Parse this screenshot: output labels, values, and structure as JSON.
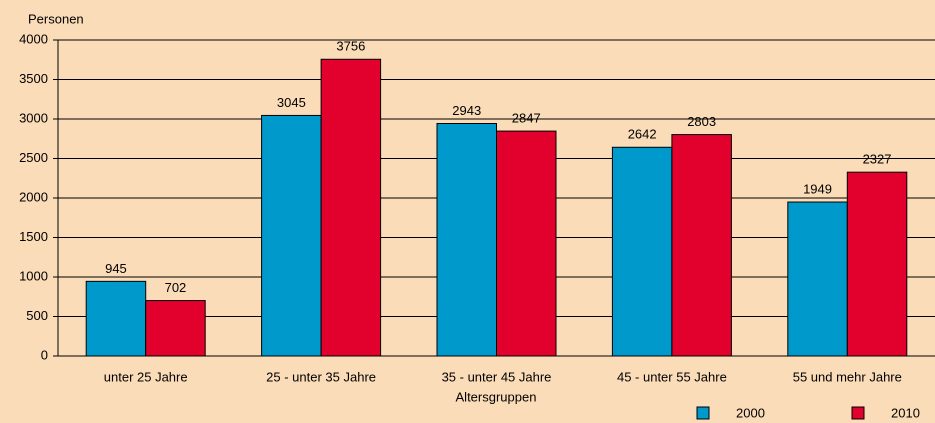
{
  "chart_data": {
    "type": "bar",
    "y_axis_label": "Personen",
    "x_axis_label": "Altersgruppen",
    "categories": [
      "unter 25 Jahre",
      "25 - unter 35 Jahre",
      "35 - unter 45 Jahre",
      "45 - unter 55 Jahre",
      "55 und mehr Jahre"
    ],
    "series": [
      {
        "name": "2000",
        "color": "#0099cc",
        "values": [
          945,
          3045,
          2943,
          2642,
          1949
        ]
      },
      {
        "name": "2010",
        "color": "#e2002c",
        "values": [
          702,
          3756,
          2847,
          2803,
          2327
        ]
      }
    ],
    "ylim": [
      0,
      4000
    ],
    "yticks": [
      0,
      500,
      1000,
      1500,
      2000,
      2500,
      3000,
      3500,
      4000
    ],
    "grid": true,
    "legend": "bottom-right"
  }
}
